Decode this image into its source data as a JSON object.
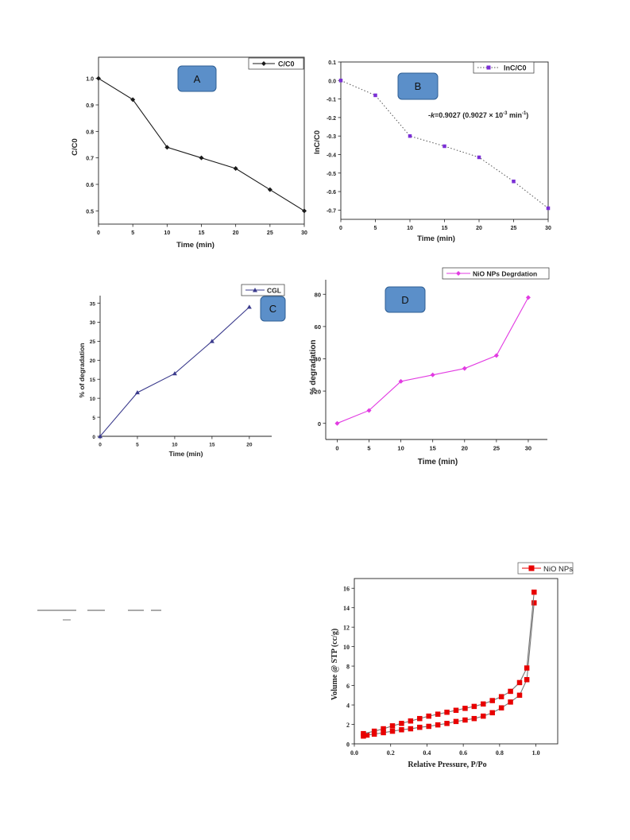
{
  "chart_data": [
    {
      "id": "A",
      "type": "line",
      "panel_label": "A",
      "xlabel": "Time (min)",
      "ylabel": "C/C0",
      "xlim": [
        0,
        30
      ],
      "ylim": [
        0.45,
        1.08
      ],
      "xticks": [
        0,
        5,
        10,
        15,
        20,
        25,
        30
      ],
      "yticks": [
        0.5,
        0.6,
        0.7,
        0.8,
        0.9,
        1.0
      ],
      "ytick_labels": [
        "0.5",
        "0.6",
        "0.7",
        "0.8",
        "0.9",
        "1.0"
      ],
      "legend_position": "top-right",
      "series": [
        {
          "name": "C/C0",
          "color": "#1a1a1a",
          "marker": "diamond",
          "line": "solid",
          "x": [
            0,
            5,
            10,
            15,
            20,
            25,
            30
          ],
          "y": [
            1.0,
            0.92,
            0.74,
            0.7,
            0.66,
            0.58,
            0.5
          ]
        }
      ]
    },
    {
      "id": "B",
      "type": "line",
      "panel_label": "B",
      "xlabel": "Time (min)",
      "ylabel": "lnC/C0",
      "xlim": [
        0,
        30
      ],
      "ylim": [
        -0.75,
        0.1
      ],
      "xticks": [
        0,
        5,
        10,
        15,
        20,
        25,
        30
      ],
      "yticks": [
        0.1,
        0.0,
        -0.1,
        -0.2,
        -0.3,
        -0.4,
        -0.5,
        -0.6,
        -0.7
      ],
      "ytick_labels": [
        "0.1",
        "0.0",
        "-0.1",
        "-0.2",
        "-0.3",
        "-0.4",
        "-0.5",
        "-0.6",
        "-0.7"
      ],
      "legend_position": "top-right",
      "annotation_prefix": "-",
      "annotation_k": "k",
      "annotation_value": "=0.9027 (0.9027 × 10",
      "annotation_exp1": "-3",
      "annotation_unit": " min",
      "annotation_exp2": "-1",
      "annotation_close": ")",
      "series": [
        {
          "name": "lnC/C0",
          "color": "#7b2fd6",
          "marker": "square",
          "line": "dotted",
          "line_color": "#555555",
          "x": [
            0,
            5,
            10,
            15,
            20,
            25,
            30
          ],
          "y": [
            0.0,
            -0.08,
            -0.3,
            -0.355,
            -0.415,
            -0.545,
            -0.69
          ]
        }
      ]
    },
    {
      "id": "C",
      "type": "line",
      "panel_label": "C",
      "xlabel": "Time (min)",
      "ylabel": "% of degradation",
      "xlim": [
        0,
        23
      ],
      "ylim": [
        0,
        37
      ],
      "xticks": [
        0,
        5,
        10,
        15,
        20
      ],
      "yticks": [
        0,
        5,
        10,
        15,
        20,
        25,
        30,
        35
      ],
      "ytick_labels": [
        "0",
        "5",
        "10",
        "15",
        "20",
        "25",
        "30",
        "35"
      ],
      "legend_position": "top-right",
      "series": [
        {
          "name": "CGL",
          "color": "#3a3a8c",
          "marker": "triangle",
          "line": "solid",
          "x": [
            0,
            5,
            10,
            15,
            20
          ],
          "y": [
            0,
            11.5,
            16.5,
            25,
            34
          ]
        }
      ]
    },
    {
      "id": "D",
      "type": "line",
      "panel_label": "D",
      "xlabel": "Time (min)",
      "ylabel": "% degradation",
      "xlim": [
        -1.8,
        33
      ],
      "ylim": [
        -10,
        89
      ],
      "xticks": [
        0,
        5,
        10,
        15,
        20,
        25,
        30
      ],
      "yticks": [
        0,
        20,
        40,
        60,
        80
      ],
      "ytick_labels": [
        "0",
        "20",
        "40",
        "60",
        "80"
      ],
      "legend_position": "top-right",
      "series": [
        {
          "name": "NiO NPs Degrdation",
          "color": "#e23be2",
          "marker": "diamond",
          "line": "solid",
          "x": [
            0,
            5,
            10,
            15,
            20,
            25,
            30
          ],
          "y": [
            0,
            8,
            26,
            30,
            34,
            42,
            78
          ]
        }
      ]
    },
    {
      "id": "E",
      "type": "scatter",
      "xlabel": "Relative Pressure, P/Po",
      "ylabel": "Volume @ STP (cc/g)",
      "xlim": [
        0,
        1.12
      ],
      "ylim": [
        0,
        17
      ],
      "xticks": [
        0.0,
        0.2,
        0.4,
        0.6,
        0.8,
        1.0
      ],
      "xtick_labels": [
        "0.0",
        "0.2",
        "0.4",
        "0.6",
        "0.8",
        "1.0"
      ],
      "yticks": [
        0,
        2,
        4,
        6,
        8,
        10,
        12,
        14,
        16
      ],
      "ytick_labels": [
        "0",
        "2",
        "4",
        "6",
        "8",
        "10",
        "12",
        "14",
        "16"
      ],
      "legend_position": "top-right",
      "series": [
        {
          "name": "NiO NPs",
          "color": "#e80000",
          "marker": "square",
          "line": "solid",
          "line_color": "#777777",
          "branch": "adsorption",
          "x": [
            0.05,
            0.07,
            0.11,
            0.16,
            0.21,
            0.26,
            0.31,
            0.36,
            0.41,
            0.46,
            0.51,
            0.56,
            0.61,
            0.66,
            0.71,
            0.76,
            0.81,
            0.86,
            0.91,
            0.95,
            0.99
          ],
          "y": [
            0.8,
            0.9,
            1.0,
            1.15,
            1.3,
            1.45,
            1.55,
            1.7,
            1.8,
            1.95,
            2.1,
            2.3,
            2.45,
            2.6,
            2.85,
            3.2,
            3.7,
            4.3,
            5.0,
            6.6,
            14.5
          ]
        },
        {
          "name": "NiO NPs",
          "color": "#e80000",
          "marker": "square",
          "line": "solid",
          "line_color": "#777777",
          "branch": "desorption",
          "x": [
            0.99,
            0.95,
            0.91,
            0.86,
            0.81,
            0.76,
            0.71,
            0.66,
            0.61,
            0.56,
            0.51,
            0.46,
            0.41,
            0.36,
            0.31,
            0.26,
            0.21,
            0.16,
            0.11,
            0.05
          ],
          "y": [
            15.6,
            7.8,
            6.3,
            5.4,
            4.85,
            4.45,
            4.1,
            3.85,
            3.65,
            3.45,
            3.25,
            3.05,
            2.85,
            2.6,
            2.35,
            2.1,
            1.85,
            1.55,
            1.3,
            1.05
          ]
        }
      ]
    }
  ]
}
